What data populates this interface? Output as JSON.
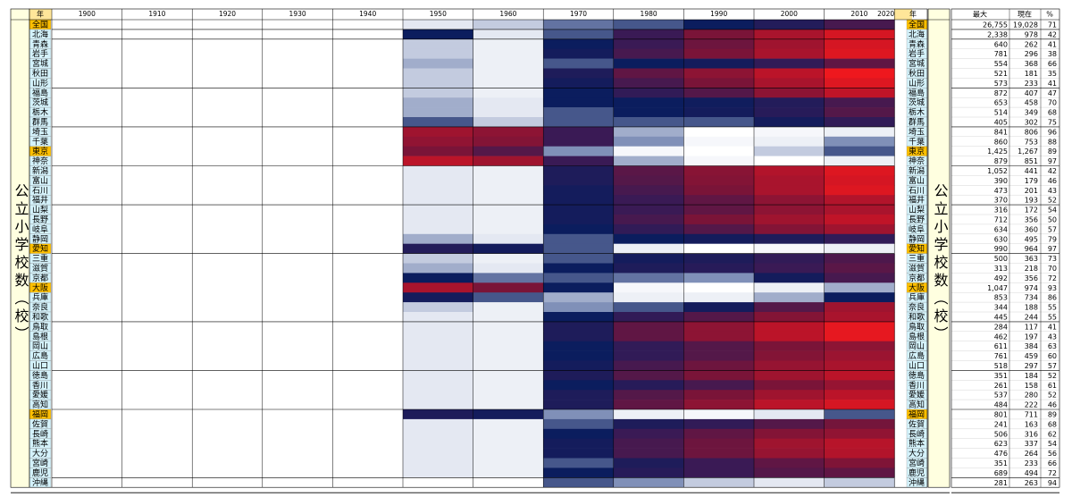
{
  "header": {
    "year_label": "年",
    "decades": [
      1900,
      1910,
      1920,
      1930,
      1940,
      1950,
      1960,
      1970,
      1980,
      1990,
      2000,
      2010,
      2020
    ],
    "max_label": "最大",
    "current_label": "現在",
    "pct_label": "%"
  },
  "side_label": "公立小学校数（校）",
  "heat_years": [
    1950,
    1960,
    1970,
    1980,
    1990,
    2000,
    2010
  ],
  "rows": [
    {
      "name": "全国",
      "highlight": true,
      "max": "26,755",
      "current": "19,028",
      "pct": 71,
      "heat": [
        97,
        96,
        93,
        92,
        90,
        85,
        78
      ]
    },
    {
      "name": "北海",
      "max": "2,338",
      "current": "978",
      "pct": 42,
      "heat": [
        90,
        97,
        92,
        80,
        70,
        60,
        50
      ]
    },
    {
      "name": "青森",
      "max": "640",
      "current": "262",
      "pct": 41,
      "heat": [
        96,
        98,
        90,
        80,
        72,
        62,
        50
      ]
    },
    {
      "name": "岩手",
      "max": "781",
      "current": "296",
      "pct": 38,
      "heat": [
        96,
        98,
        88,
        78,
        70,
        60,
        48
      ]
    },
    {
      "name": "宮城",
      "max": "554",
      "current": "368",
      "pct": 66,
      "heat": [
        95,
        98,
        92,
        90,
        88,
        82,
        74
      ]
    },
    {
      "name": "秋田",
      "max": "521",
      "current": "181",
      "pct": 35,
      "heat": [
        96,
        98,
        86,
        74,
        66,
        56,
        44
      ]
    },
    {
      "name": "山形",
      "max": "573",
      "current": "233",
      "pct": 41,
      "heat": [
        96,
        98,
        88,
        78,
        70,
        60,
        48
      ]
    },
    {
      "name": "福島",
      "max": "872",
      "current": "407",
      "pct": 47,
      "heat": [
        96,
        98,
        90,
        82,
        76,
        66,
        55
      ]
    },
    {
      "name": "茨城",
      "max": "653",
      "current": "458",
      "pct": 70,
      "heat": [
        95,
        97,
        90,
        90,
        89,
        85,
        78
      ]
    },
    {
      "name": "栃木",
      "max": "514",
      "current": "349",
      "pct": 68,
      "heat": [
        95,
        97,
        92,
        90,
        88,
        84,
        76
      ]
    },
    {
      "name": "群馬",
      "max": "405",
      "current": "302",
      "pct": 75,
      "heat": [
        92,
        96,
        92,
        92,
        92,
        88,
        82
      ]
    },
    {
      "name": "埼玉",
      "max": "841",
      "current": "806",
      "pct": 96,
      "heat": [
        62,
        66,
        80,
        95,
        100,
        99,
        98
      ]
    },
    {
      "name": "千葉",
      "max": "860",
      "current": "753",
      "pct": 88,
      "heat": [
        65,
        68,
        80,
        94,
        99,
        98,
        94
      ]
    },
    {
      "name": "東京",
      "highlight": true,
      "max": "1,425",
      "current": "1,267",
      "pct": 89,
      "heat": [
        70,
        76,
        94,
        99,
        100,
        96,
        92
      ]
    },
    {
      "name": "神奈",
      "max": "879",
      "current": "851",
      "pct": 97,
      "heat": [
        56,
        62,
        80,
        95,
        99,
        100,
        98
      ]
    },
    {
      "name": "新潟",
      "max": "1,052",
      "current": "441",
      "pct": 42,
      "heat": [
        97,
        98,
        86,
        75,
        67,
        58,
        48
      ]
    },
    {
      "name": "富山",
      "max": "390",
      "current": "179",
      "pct": 46,
      "heat": [
        97,
        98,
        86,
        76,
        68,
        60,
        50
      ]
    },
    {
      "name": "石川",
      "max": "473",
      "current": "201",
      "pct": 43,
      "heat": [
        97,
        98,
        88,
        78,
        70,
        60,
        48
      ]
    },
    {
      "name": "福井",
      "max": "370",
      "current": "193",
      "pct": 52,
      "heat": [
        97,
        98,
        88,
        80,
        74,
        66,
        58
      ]
    },
    {
      "name": "山梨",
      "max": "316",
      "current": "172",
      "pct": 54,
      "heat": [
        97,
        98,
        88,
        80,
        74,
        66,
        60
      ]
    },
    {
      "name": "長野",
      "max": "712",
      "current": "356",
      "pct": 50,
      "heat": [
        97,
        98,
        88,
        78,
        70,
        62,
        55
      ]
    },
    {
      "name": "岐阜",
      "max": "634",
      "current": "360",
      "pct": 57,
      "heat": [
        97,
        98,
        90,
        82,
        76,
        68,
        62
      ]
    },
    {
      "name": "静岡",
      "max": "630",
      "current": "495",
      "pct": 79,
      "heat": [
        95,
        97,
        92,
        90,
        88,
        86,
        82
      ]
    },
    {
      "name": "愛知",
      "highlight": true,
      "max": "990",
      "current": "964",
      "pct": 97,
      "heat": [
        85,
        88,
        92,
        98,
        100,
        99,
        98
      ]
    },
    {
      "name": "三重",
      "max": "500",
      "current": "363",
      "pct": 73,
      "heat": [
        96,
        98,
        92,
        88,
        86,
        82,
        77
      ]
    },
    {
      "name": "滋賀",
      "max": "313",
      "current": "218",
      "pct": 70,
      "heat": [
        95,
        97,
        90,
        86,
        84,
        80,
        75
      ]
    },
    {
      "name": "京都",
      "max": "492",
      "current": "356",
      "pct": 72,
      "heat": [
        90,
        93,
        92,
        93,
        94,
        88,
        78
      ]
    },
    {
      "name": "大阪",
      "highlight": true,
      "max": "1,047",
      "current": "974",
      "pct": 93,
      "heat": [
        60,
        70,
        90,
        99,
        100,
        98,
        95
      ]
    },
    {
      "name": "兵庫",
      "max": "853",
      "current": "734",
      "pct": 86,
      "heat": [
        88,
        92,
        95,
        98,
        98,
        95,
        90
      ]
    },
    {
      "name": "奈良",
      "max": "344",
      "current": "188",
      "pct": 55,
      "heat": [
        96,
        98,
        94,
        92,
        88,
        76,
        62
      ]
    },
    {
      "name": "和歌",
      "max": "445",
      "current": "244",
      "pct": 55,
      "heat": [
        97,
        98,
        90,
        82,
        76,
        68,
        60
      ]
    },
    {
      "name": "鳥取",
      "max": "284",
      "current": "117",
      "pct": 41,
      "heat": [
        97,
        98,
        86,
        74,
        66,
        56,
        46
      ]
    },
    {
      "name": "島根",
      "max": "462",
      "current": "197",
      "pct": 43,
      "heat": [
        97,
        98,
        86,
        74,
        66,
        56,
        46
      ]
    },
    {
      "name": "岡山",
      "max": "611",
      "current": "384",
      "pct": 63,
      "heat": [
        97,
        98,
        90,
        82,
        76,
        70,
        66
      ]
    },
    {
      "name": "広島",
      "max": "761",
      "current": "459",
      "pct": 60,
      "heat": [
        97,
        98,
        90,
        82,
        76,
        68,
        63
      ]
    },
    {
      "name": "山口",
      "max": "518",
      "current": "297",
      "pct": 57,
      "heat": [
        97,
        98,
        88,
        78,
        72,
        64,
        60
      ]
    },
    {
      "name": "徳島",
      "max": "351",
      "current": "184",
      "pct": 52,
      "heat": [
        97,
        98,
        86,
        76,
        70,
        62,
        56
      ]
    },
    {
      "name": "香川",
      "max": "261",
      "current": "158",
      "pct": 61,
      "heat": [
        97,
        98,
        90,
        84,
        78,
        70,
        64
      ]
    },
    {
      "name": "愛媛",
      "max": "537",
      "current": "280",
      "pct": 52,
      "heat": [
        97,
        98,
        86,
        76,
        70,
        62,
        56
      ]
    },
    {
      "name": "高知",
      "max": "484",
      "current": "222",
      "pct": 46,
      "heat": [
        97,
        98,
        86,
        74,
        66,
        56,
        50
      ]
    },
    {
      "name": "福岡",
      "highlight": true,
      "max": "801",
      "current": "711",
      "pct": 89,
      "heat": [
        86,
        88,
        94,
        98,
        99,
        97,
        92
      ]
    },
    {
      "name": "佐賀",
      "max": "241",
      "current": "163",
      "pct": 68,
      "heat": [
        97,
        98,
        92,
        86,
        82,
        76,
        71
      ]
    },
    {
      "name": "長崎",
      "max": "506",
      "current": "316",
      "pct": 62,
      "heat": [
        97,
        98,
        90,
        80,
        74,
        68,
        65
      ]
    },
    {
      "name": "熊本",
      "max": "623",
      "current": "337",
      "pct": 54,
      "heat": [
        97,
        98,
        88,
        78,
        72,
        62,
        57
      ]
    },
    {
      "name": "大分",
      "max": "476",
      "current": "264",
      "pct": 56,
      "heat": [
        97,
        98,
        88,
        78,
        72,
        64,
        58
      ]
    },
    {
      "name": "宮崎",
      "max": "351",
      "current": "233",
      "pct": 66,
      "heat": [
        97,
        98,
        92,
        86,
        80,
        74,
        69
      ]
    },
    {
      "name": "鹿児",
      "max": "689",
      "current": "494",
      "pct": 72,
      "heat": [
        97,
        98,
        90,
        84,
        80,
        76,
        74
      ]
    },
    {
      "name": "沖縄",
      "max": "281",
      "current": "263",
      "pct": 94,
      "heat": [
        null,
        null,
        92,
        94,
        96,
        97,
        96
      ]
    }
  ]
}
